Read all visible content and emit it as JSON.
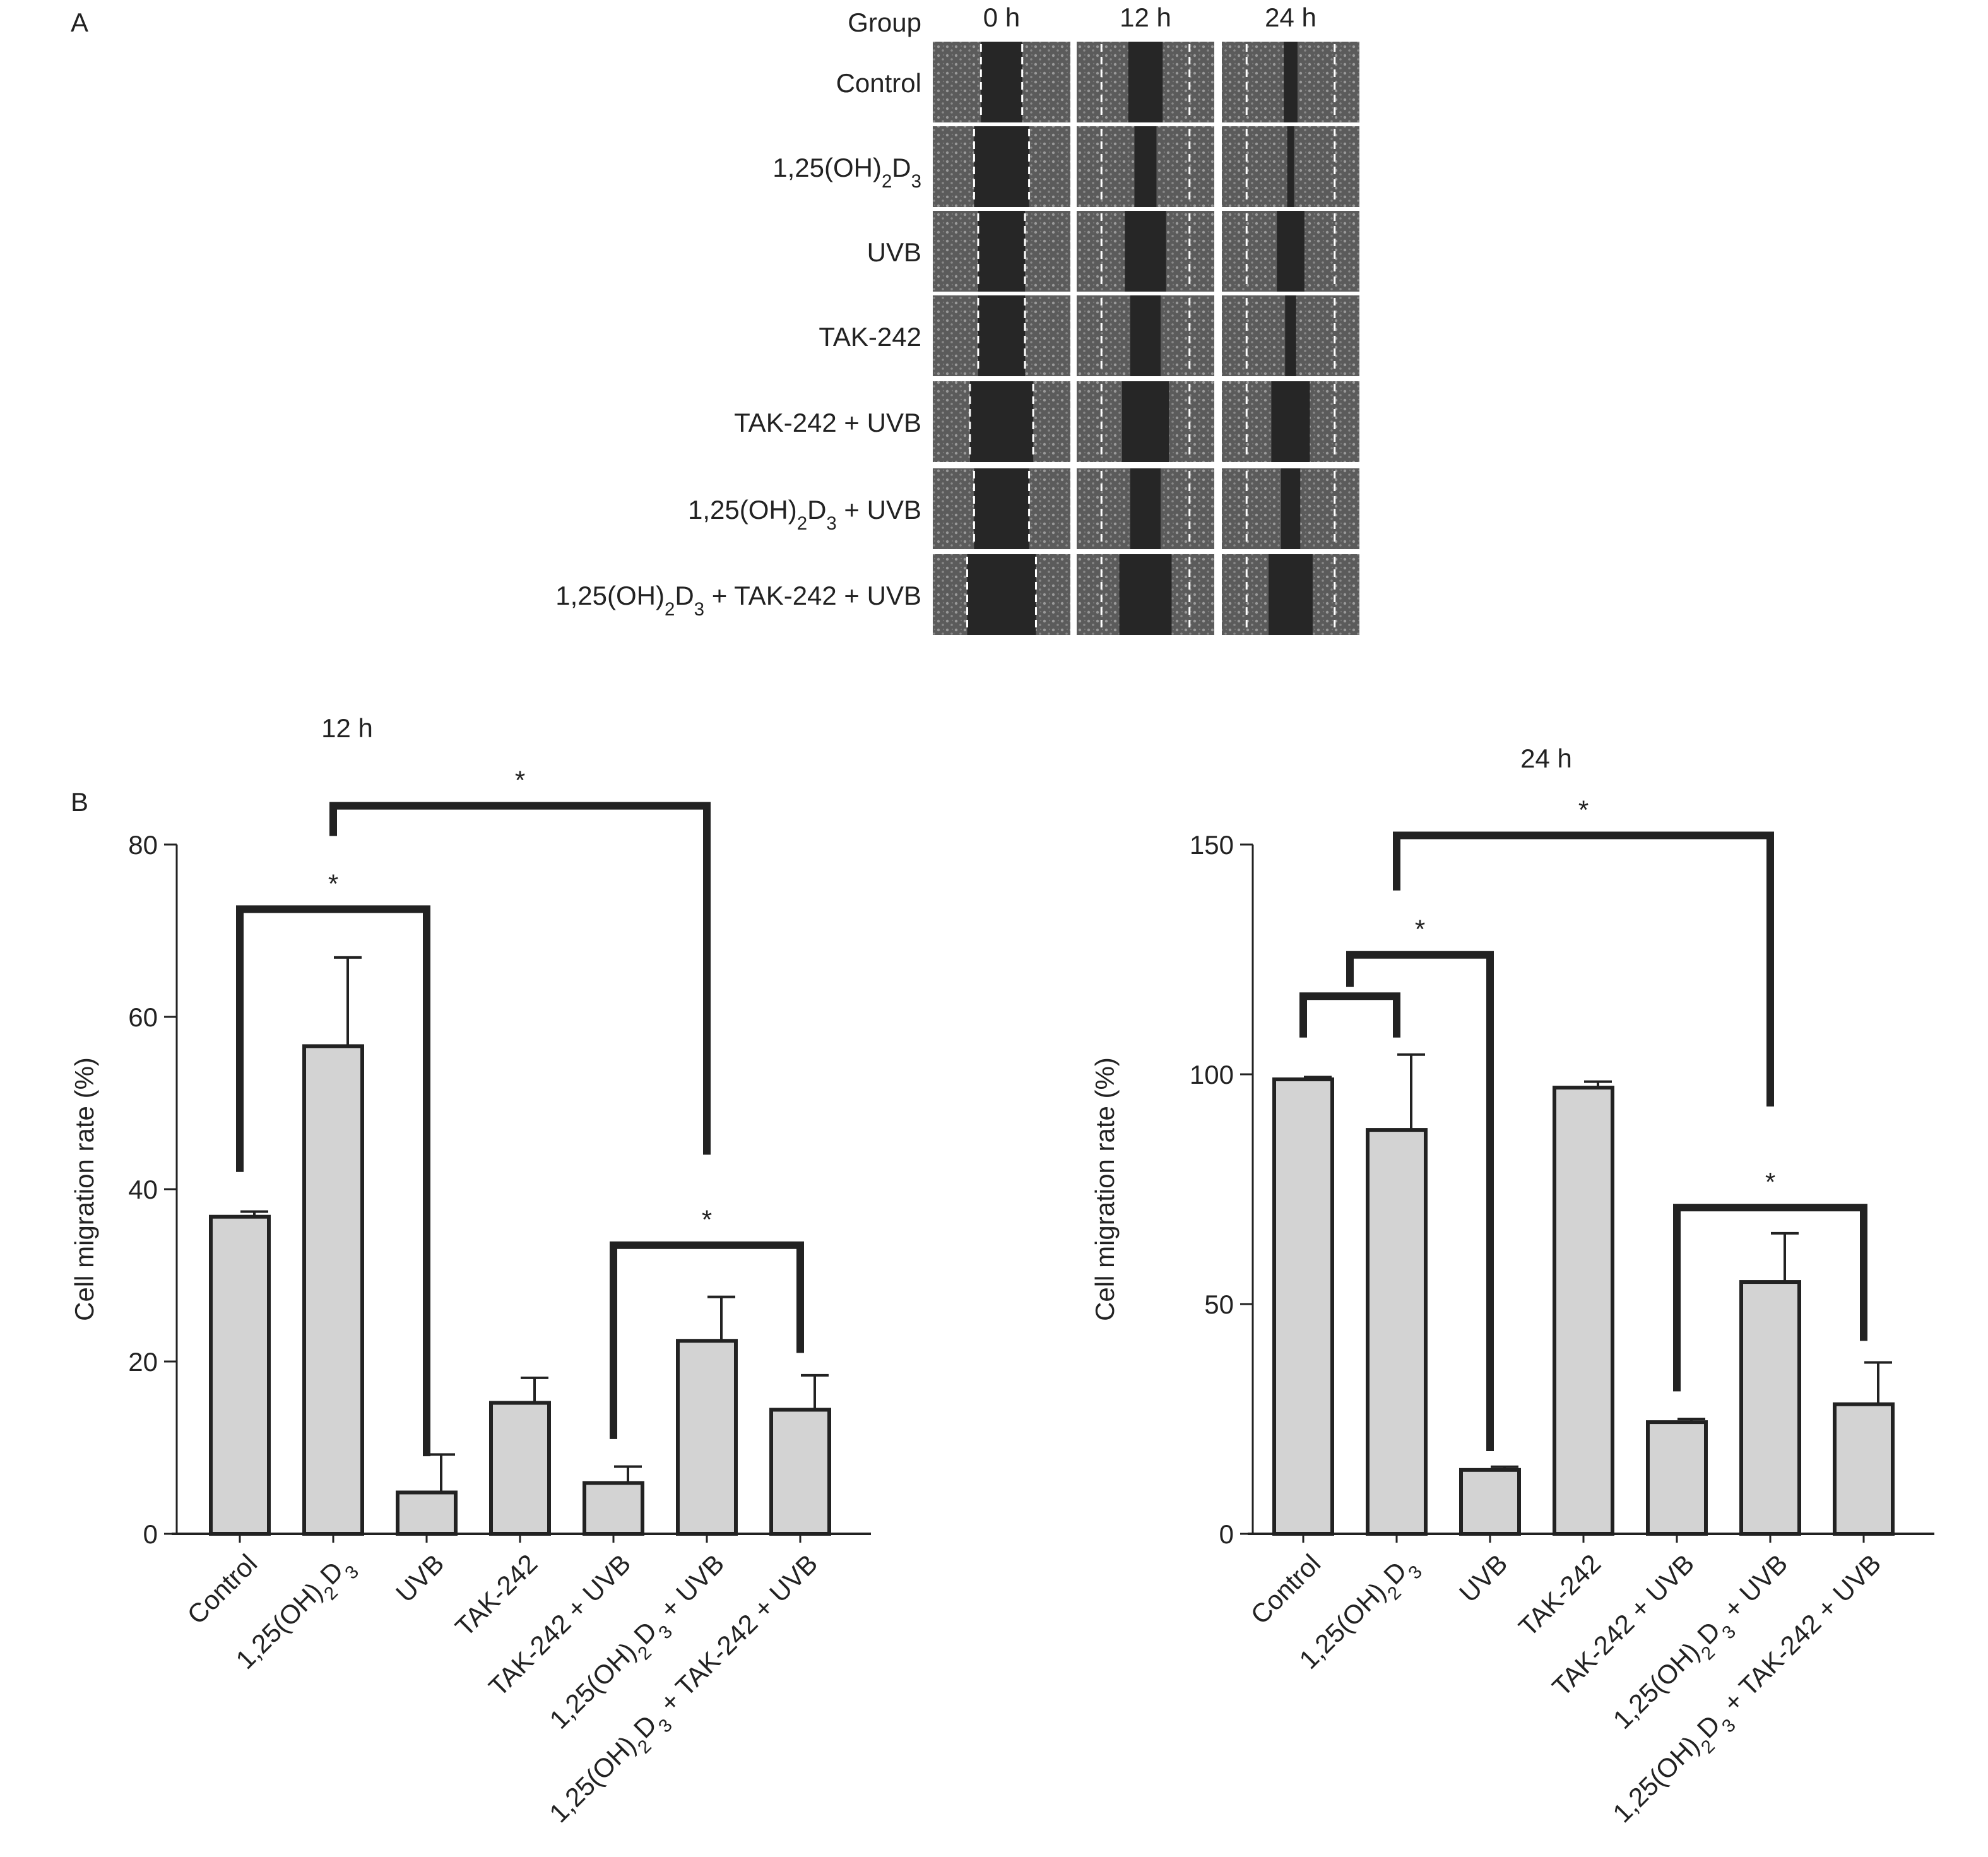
{
  "panel_a": {
    "panel_label": "A",
    "group_header": "Group",
    "time_headers": [
      "0 h",
      "12 h",
      "24 h"
    ],
    "groups": [
      {
        "base": "Control"
      },
      {
        "base": "1,25(OH)",
        "sub1": "2",
        "mid": "D",
        "sub2": "3",
        "tail": ""
      },
      {
        "base": "UVB"
      },
      {
        "base": "TAK-242"
      },
      {
        "base": "TAK-242 + UVB"
      },
      {
        "base": "1,25(OH)",
        "sub1": "2",
        "mid": "D",
        "sub2": "3",
        "tail": " + UVB"
      },
      {
        "base": "1,25(OH)",
        "sub1": "2",
        "mid": "D",
        "sub2": "3",
        "tail": " + TAK-242 + UVB"
      }
    ],
    "gaps": [
      [
        0.3,
        0.25,
        0.1
      ],
      [
        0.4,
        0.16,
        0.05
      ],
      [
        0.34,
        0.3,
        0.2
      ],
      [
        0.34,
        0.22,
        0.08
      ],
      [
        0.46,
        0.34,
        0.28
      ],
      [
        0.4,
        0.22,
        0.14
      ],
      [
        0.5,
        0.38,
        0.32
      ]
    ]
  },
  "panel_b_label": "B",
  "chart_data": [
    {
      "type": "bar",
      "title": "12 h",
      "ylabel": "Cell migration rate (%)",
      "ylim": [
        0,
        80
      ],
      "yticks": [
        0,
        20,
        40,
        60,
        80
      ],
      "categories": [
        {
          "base": "Control"
        },
        {
          "base": "1,25(OH)",
          "sub1": "2",
          "mid": "D",
          "sub2": "3",
          "tail": ""
        },
        {
          "base": "UVB"
        },
        {
          "base": "TAK-242"
        },
        {
          "base": "TAK-242 + UVB"
        },
        {
          "base": "1,25(OH)",
          "sub1": "2",
          "mid": "D",
          "sub2": "3",
          "tail": " + UVB"
        },
        {
          "base": "1,25(OH)",
          "sub1": "2",
          "mid": "D",
          "sub2": "3",
          "tail": " + TAK-242 + UVB"
        }
      ],
      "values": [
        36.8,
        56.6,
        4.8,
        15.2,
        5.9,
        22.4,
        14.4
      ],
      "errors": [
        0.6,
        10.3,
        4.4,
        2.9,
        1.9,
        5.1,
        4.0
      ],
      "significance": [
        {
          "a": 0,
          "b": 2,
          "level": 72.5,
          "top_a": 42,
          "top_b": 9,
          "label": "*"
        },
        {
          "a": 1,
          "b": 5,
          "level": 84.5,
          "top_a": 81,
          "top_b": 44,
          "label": "*"
        },
        {
          "a": 4,
          "b": 6,
          "level": 33.5,
          "top_a": 11,
          "top_b": 21,
          "label": "*"
        }
      ]
    },
    {
      "type": "bar",
      "title": "24 h",
      "ylabel": "Cell migration rate (%)",
      "ylim": [
        0,
        150
      ],
      "yticks": [
        0,
        50,
        100,
        150
      ],
      "categories": [
        {
          "base": "Control"
        },
        {
          "base": "1,25(OH)",
          "sub1": "2",
          "mid": "D",
          "sub2": "3",
          "tail": ""
        },
        {
          "base": "UVB"
        },
        {
          "base": "TAK-242"
        },
        {
          "base": "TAK-242 + UVB"
        },
        {
          "base": "1,25(OH)",
          "sub1": "2",
          "mid": "D",
          "sub2": "3",
          "tail": " + UVB"
        },
        {
          "base": "1,25(OH)",
          "sub1": "2",
          "mid": "D",
          "sub2": "3",
          "tail": " + TAK-242 + UVB"
        }
      ],
      "values": [
        98.9,
        87.9,
        13.9,
        97.1,
        24.3,
        54.8,
        28.2
      ],
      "errors": [
        0.5,
        16.4,
        0.7,
        1.3,
        0.7,
        10.6,
        9.1
      ],
      "significance": [
        {
          "a": 0,
          "b": 1,
          "level": 117,
          "top_a": 108,
          "top_b": 108,
          "label": ""
        },
        {
          "a": 0.5,
          "b": 2,
          "level": 126,
          "top_a": 119,
          "top_b": 18,
          "label": "*"
        },
        {
          "a": 1,
          "b": 5,
          "level": 152,
          "top_a": 140,
          "top_b": 93,
          "label": "*"
        },
        {
          "a": 4,
          "b": 6,
          "level": 71,
          "top_a": 31,
          "top_b": 42,
          "label": "*"
        }
      ]
    }
  ]
}
